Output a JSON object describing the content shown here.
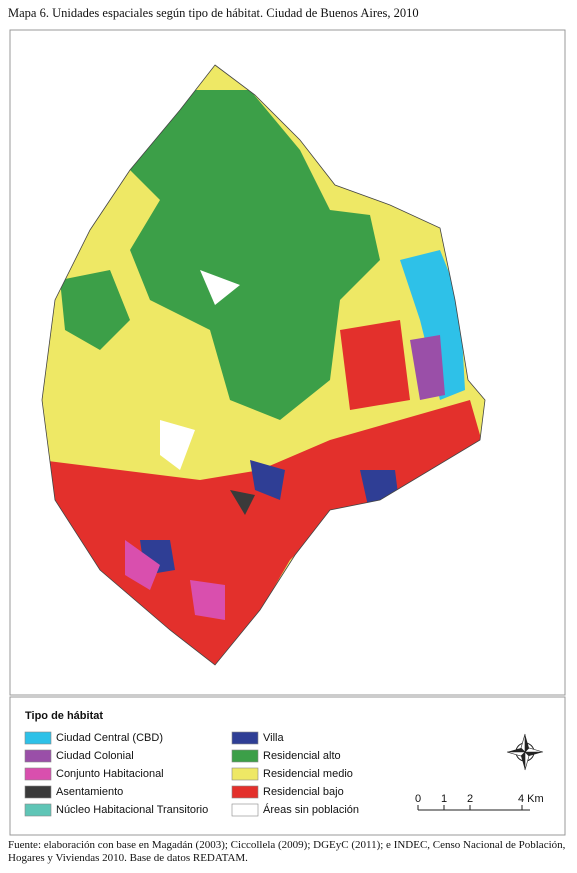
{
  "title": "Mapa 6. Unidades espaciales según tipo de hábitat. Ciudad de Buenos Aires, 2010",
  "legend": {
    "title": "Tipo de hábitat",
    "items": [
      {
        "label": "Ciudad Central (CBD)",
        "color": "#2ec1e8"
      },
      {
        "label": "Ciudad Colonial",
        "color": "#9a4fa8"
      },
      {
        "label": "Conjunto Habitacional",
        "color": "#d94fae"
      },
      {
        "label": "Asentamiento",
        "color": "#3a3a3a"
      },
      {
        "label": "Núcleo Habitacional Transitorio",
        "color": "#5fc5b6"
      },
      {
        "label": "Villa",
        "color": "#2f3e95"
      },
      {
        "label": "Residencial alto",
        "color": "#3c9f48"
      },
      {
        "label": "Residencial medio",
        "color": "#eee865"
      },
      {
        "label": "Residencial bajo",
        "color": "#e3302c"
      },
      {
        "label": "Áreas sin población",
        "color": "#ffffff"
      }
    ]
  },
  "scale_bar": {
    "labels": [
      "0",
      "1",
      "2",
      "4 Km"
    ]
  },
  "source": "Fuente: elaboración con base en Magadán (2003); Ciccollela (2009); DGEyC (2011); e INDEC, Censo Nacional de Población, Hogares y Viviendas 2010. Base de datos REDATAM."
}
